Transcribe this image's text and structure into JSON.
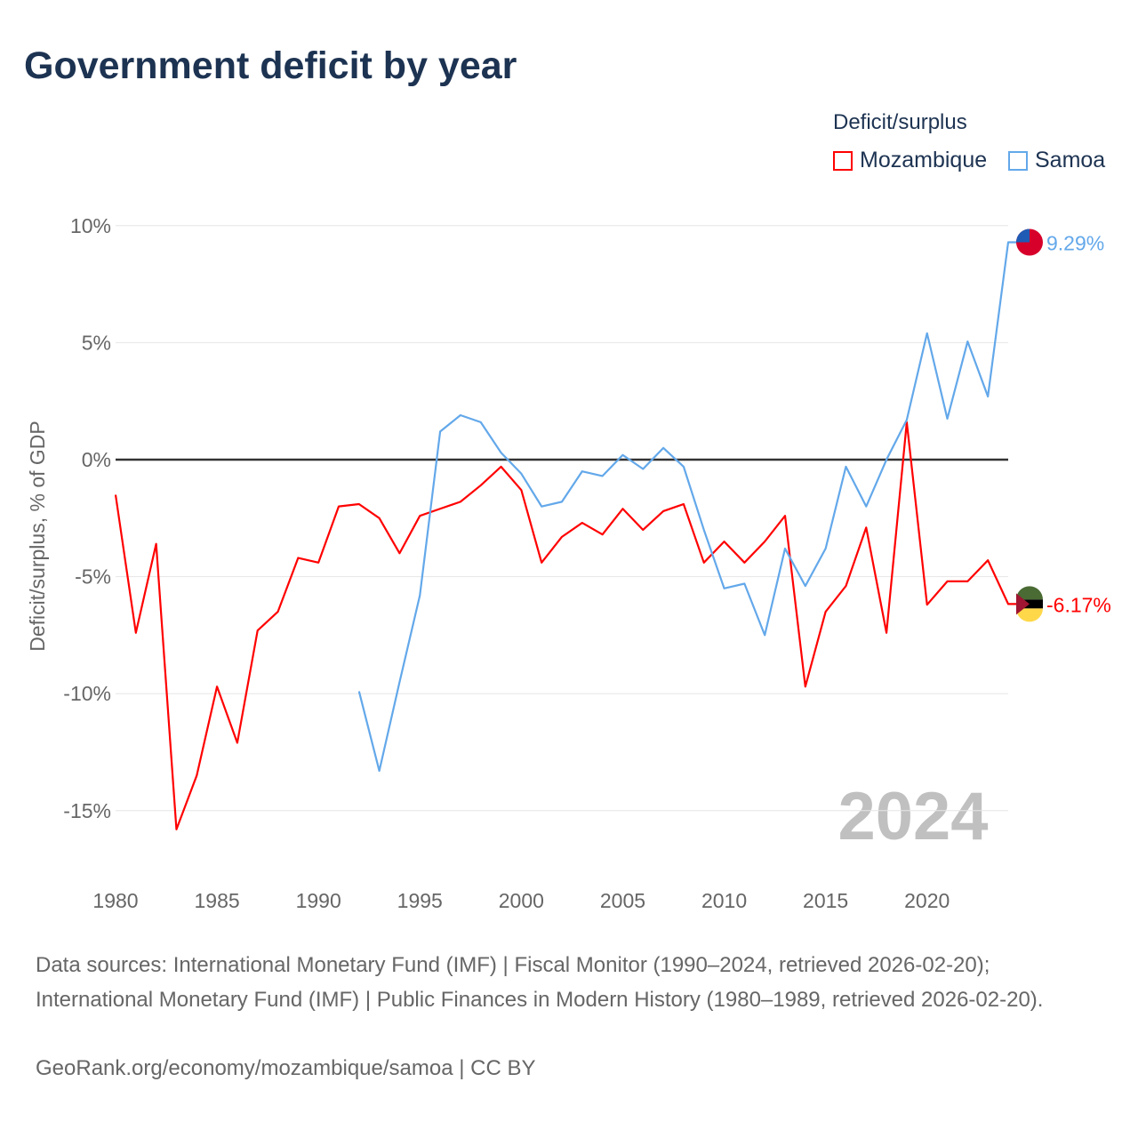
{
  "chart_data": {
    "type": "line",
    "title": "Government deficit by year",
    "ylabel": "Deficit/surplus, % of GDP",
    "xlabel": "",
    "xlim": [
      1980,
      2024
    ],
    "ylim": [
      -15,
      10
    ],
    "yticks": [
      10,
      5,
      0,
      -5,
      -10,
      -15
    ],
    "ytick_labels": [
      "10%",
      "5%",
      "0%",
      "-5%",
      "-10%",
      "-15%"
    ],
    "xticks": [
      1980,
      1985,
      1990,
      1995,
      2000,
      2005,
      2010,
      2015,
      2020
    ],
    "xtick_labels": [
      "1980",
      "1985",
      "1990",
      "1995",
      "2000",
      "2005",
      "2010",
      "2015",
      "2020"
    ],
    "grid": true,
    "legend_title": "Deficit/surplus",
    "legend_position": "top-right",
    "year_watermark": "2024",
    "series": [
      {
        "name": "Mozambique",
        "color": "#ff0000",
        "start_year": 1980,
        "end_label": "-6.17%",
        "values": [
          -1.5,
          -7.4,
          -3.6,
          -15.8,
          -13.5,
          -9.7,
          -12.1,
          -7.3,
          -6.5,
          -4.2,
          -4.4,
          -2.0,
          -1.9,
          -2.5,
          -4.0,
          -2.4,
          -2.1,
          -1.8,
          -1.1,
          -0.3,
          -1.3,
          -4.4,
          -3.3,
          -2.7,
          -3.2,
          -2.1,
          -3.0,
          -2.2,
          -1.9,
          -4.4,
          -3.5,
          -4.4,
          -3.5,
          -2.4,
          -9.7,
          -6.5,
          -5.4,
          -2.9,
          -7.4,
          1.6,
          -6.2,
          -5.2,
          -5.2,
          -4.3,
          -6.17
        ]
      },
      {
        "name": "Samoa",
        "color": "#63a8ea",
        "start_year": 1992,
        "end_label": "9.29%",
        "values": [
          -9.9,
          -13.3,
          -9.5,
          -5.8,
          1.2,
          1.9,
          1.6,
          0.3,
          -0.6,
          -2.0,
          -1.8,
          -0.5,
          -0.7,
          0.2,
          -0.4,
          0.5,
          -0.3,
          -3.0,
          -5.5,
          -5.3,
          -7.5,
          -3.8,
          -5.4,
          -3.8,
          -0.3,
          -2.0,
          0.0,
          1.7,
          5.4,
          1.75,
          5.05,
          2.7,
          9.29
        ]
      }
    ]
  },
  "footer": {
    "sources": "Data sources: International Monetary Fund (IMF) | Fiscal Monitor (1990–2024, retrieved 2026-02-20); International Monetary Fund (IMF) | Public Finances in Modern History (1980–1989, retrieved 2026-02-20).",
    "attribution": "GeoRank.org/economy/mozambique/samoa | CC BY"
  }
}
